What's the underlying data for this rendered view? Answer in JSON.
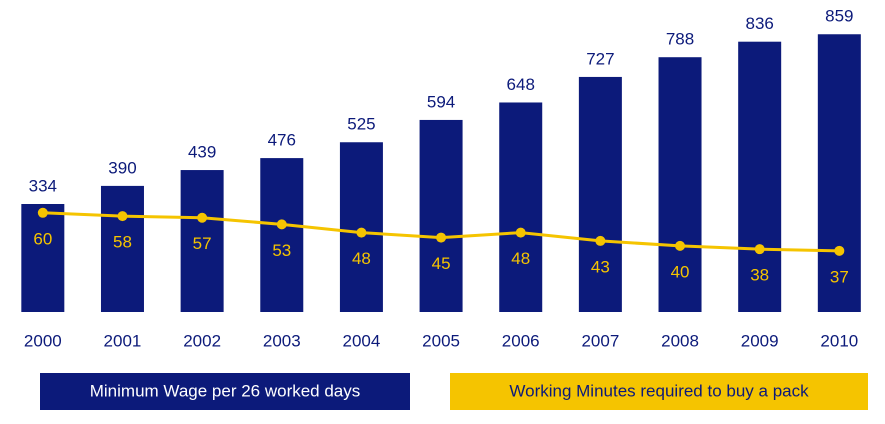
{
  "chart_data": {
    "type": "bar_line",
    "categories": [
      "2000",
      "2001",
      "2002",
      "2003",
      "2004",
      "2005",
      "2006",
      "2007",
      "2008",
      "2009",
      "2010"
    ],
    "series": [
      {
        "name": "Minimum Wage per 26 worked days",
        "type": "bar",
        "color": "#0c1a7a",
        "values": [
          334,
          390,
          439,
          476,
          525,
          594,
          648,
          727,
          788,
          836,
          859
        ]
      },
      {
        "name": "Working Minutes required to buy a pack",
        "type": "line",
        "axis": "y2",
        "color": "#f5c400",
        "values": [
          60,
          58,
          57,
          53,
          48,
          45,
          48,
          43,
          40,
          38,
          37
        ]
      }
    ],
    "ylim": [
      0,
      900
    ],
    "y2lim": [
      0,
      176
    ],
    "grid": false,
    "legend": "bottom"
  }
}
